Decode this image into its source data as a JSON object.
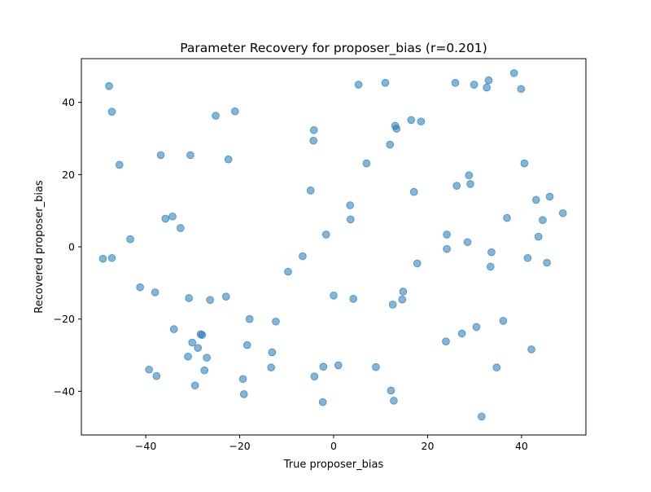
{
  "chart_data": {
    "type": "scatter",
    "title": "Parameter Recovery for proposer_bias (r=0.201)",
    "xlabel": "True proposer_bias",
    "ylabel": "Recovered proposer_bias",
    "xlim": [
      -53.7,
      53.7
    ],
    "ylim": [
      -52.1,
      52.1
    ],
    "xticks": [
      -40,
      -20,
      0,
      20,
      40
    ],
    "yticks": [
      -40,
      -20,
      0,
      20,
      40
    ],
    "grid": false,
    "marker_color": "#1f77b4",
    "marker_alpha": 0.55,
    "points": [
      [
        -47.8,
        44.5
      ],
      [
        -47.2,
        37.4
      ],
      [
        -45.6,
        22.7
      ],
      [
        -49.1,
        -3.3
      ],
      [
        -47.2,
        -3.1
      ],
      [
        -43.3,
        2.1
      ],
      [
        -41.2,
        -11.2
      ],
      [
        -39.3,
        -34.0
      ],
      [
        -38.0,
        -12.6
      ],
      [
        -37.7,
        -35.8
      ],
      [
        -36.8,
        25.4
      ],
      [
        -35.8,
        7.8
      ],
      [
        -34.3,
        8.4
      ],
      [
        -34.0,
        -22.8
      ],
      [
        -32.6,
        5.2
      ],
      [
        -30.8,
        -14.2
      ],
      [
        -30.5,
        25.4
      ],
      [
        -30.1,
        -26.5
      ],
      [
        -31.0,
        -30.4
      ],
      [
        -29.5,
        -38.4
      ],
      [
        -28.9,
        -28.0
      ],
      [
        -28.3,
        -24.2
      ],
      [
        -28.0,
        -24.4
      ],
      [
        -27.5,
        -34.2
      ],
      [
        -27.0,
        -30.7
      ],
      [
        -26.3,
        -14.7
      ],
      [
        -25.1,
        36.3
      ],
      [
        -22.9,
        -13.8
      ],
      [
        -22.4,
        24.2
      ],
      [
        -21.0,
        37.5
      ],
      [
        -19.3,
        -36.6
      ],
      [
        -19.1,
        -40.8
      ],
      [
        -18.4,
        -27.2
      ],
      [
        -17.9,
        -20.0
      ],
      [
        -13.3,
        -33.4
      ],
      [
        -13.1,
        -29.2
      ],
      [
        -12.3,
        -20.7
      ],
      [
        -9.7,
        -6.9
      ],
      [
        -6.6,
        -2.6
      ],
      [
        -4.9,
        15.6
      ],
      [
        -4.2,
        32.3
      ],
      [
        -4.3,
        29.4
      ],
      [
        -4.1,
        -35.9
      ],
      [
        -2.3,
        -43.0
      ],
      [
        -2.2,
        -33.2
      ],
      [
        -1.6,
        3.4
      ],
      [
        0.0,
        -13.5
      ],
      [
        1.0,
        -32.8
      ],
      [
        3.5,
        11.5
      ],
      [
        3.6,
        7.6
      ],
      [
        4.2,
        -14.4
      ],
      [
        5.3,
        44.9
      ],
      [
        7.0,
        23.1
      ],
      [
        9.0,
        -33.3
      ],
      [
        11.0,
        45.4
      ],
      [
        12.0,
        28.3
      ],
      [
        12.2,
        -39.8
      ],
      [
        12.6,
        -16.0
      ],
      [
        12.8,
        -42.6
      ],
      [
        13.1,
        33.5
      ],
      [
        13.4,
        32.7
      ],
      [
        14.6,
        -14.6
      ],
      [
        14.8,
        -12.4
      ],
      [
        16.5,
        35.1
      ],
      [
        17.1,
        15.2
      ],
      [
        17.8,
        -4.6
      ],
      [
        18.6,
        34.7
      ],
      [
        23.9,
        -26.2
      ],
      [
        24.1,
        3.4
      ],
      [
        24.1,
        -0.6
      ],
      [
        25.9,
        45.4
      ],
      [
        26.2,
        16.9
      ],
      [
        27.3,
        -24.0
      ],
      [
        28.5,
        1.3
      ],
      [
        28.8,
        19.8
      ],
      [
        29.1,
        17.4
      ],
      [
        29.9,
        44.9
      ],
      [
        30.4,
        -22.2
      ],
      [
        31.5,
        -47.0
      ],
      [
        32.6,
        44.1
      ],
      [
        33.0,
        46.1
      ],
      [
        33.4,
        -5.5
      ],
      [
        33.6,
        -1.5
      ],
      [
        34.7,
        -33.4
      ],
      [
        36.1,
        -20.5
      ],
      [
        36.9,
        8.0
      ],
      [
        38.4,
        48.1
      ],
      [
        39.9,
        43.7
      ],
      [
        40.6,
        23.1
      ],
      [
        41.3,
        -3.1
      ],
      [
        42.1,
        -28.4
      ],
      [
        43.1,
        13.0
      ],
      [
        43.6,
        2.8
      ],
      [
        44.5,
        7.4
      ],
      [
        45.4,
        -4.4
      ],
      [
        46.0,
        13.9
      ],
      [
        48.8,
        9.3
      ]
    ]
  }
}
